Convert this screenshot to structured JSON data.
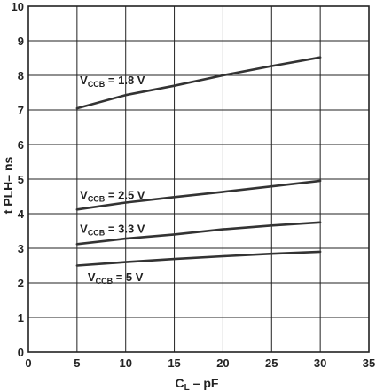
{
  "chart_data": {
    "type": "line",
    "xlabel": {
      "main": "C",
      "sub": "L",
      "rest": " – pF"
    },
    "ylabel": "t PLH– ns",
    "xlim": [
      0,
      35
    ],
    "ylim": [
      0,
      10
    ],
    "xticks": [
      "0",
      "5",
      "10",
      "15",
      "20",
      "25",
      "30",
      "35"
    ],
    "yticks": [
      "0",
      "1",
      "2",
      "3",
      "4",
      "5",
      "6",
      "7",
      "8",
      "9",
      "10"
    ],
    "grid": true,
    "series": [
      {
        "name": "V_CCB = 1.8 V",
        "label": {
          "main": "V",
          "sub": "CCB",
          "rest": " = 1.8 V"
        },
        "x": [
          5,
          10,
          15,
          20,
          25,
          30
        ],
        "y": [
          7.05,
          7.43,
          7.7,
          8.0,
          8.27,
          8.52
        ]
      },
      {
        "name": "V_CCB = 2.5 V",
        "label": {
          "main": "V",
          "sub": "CCB",
          "rest": " = 2.5 V"
        },
        "x": [
          5,
          10,
          15,
          20,
          25,
          30
        ],
        "y": [
          4.12,
          4.32,
          4.48,
          4.63,
          4.79,
          4.95
        ]
      },
      {
        "name": "V_CCB = 3.3 V",
        "label": {
          "main": "V",
          "sub": "CCB",
          "rest": " = 3.3 V"
        },
        "x": [
          5,
          10,
          15,
          20,
          25,
          30
        ],
        "y": [
          3.12,
          3.28,
          3.4,
          3.55,
          3.66,
          3.75
        ]
      },
      {
        "name": "V_CCB = 5 V",
        "label": {
          "main": "V",
          "sub": "CCB",
          "rest": " = 5 V"
        },
        "x": [
          5,
          10,
          15,
          20,
          25,
          30
        ],
        "y": [
          2.5,
          2.6,
          2.69,
          2.77,
          2.84,
          2.9
        ]
      }
    ],
    "colors": {
      "line": "#333333",
      "grid": "#222222",
      "frame": "#222222",
      "text": "#222222"
    }
  }
}
